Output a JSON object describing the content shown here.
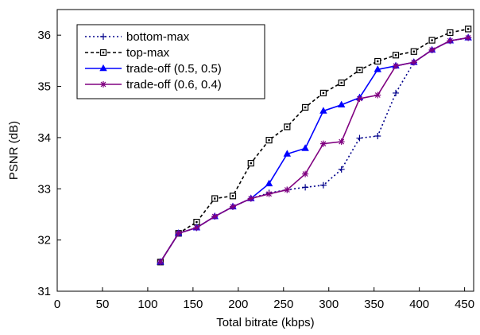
{
  "chart_data": {
    "type": "line",
    "title": "",
    "xlabel": "Total bitrate (kbps)",
    "ylabel": "PSNR (dB)",
    "xlim": [
      0,
      460
    ],
    "ylim": [
      31,
      36.5
    ],
    "xticks": [
      0,
      50,
      100,
      150,
      200,
      250,
      300,
      350,
      400,
      450
    ],
    "yticks": [
      31,
      32,
      33,
      34,
      35,
      36
    ],
    "legend_position": "top-left",
    "grid": false,
    "series": [
      {
        "name": "bottom-max",
        "color": "#00008b",
        "line_style": "dotted",
        "marker": "plus",
        "x": [
          114,
          134,
          154,
          174,
          194,
          214,
          234,
          254,
          274,
          294,
          314,
          334,
          354,
          374,
          394,
          414,
          434,
          454
        ],
        "y": [
          31.57,
          32.13,
          32.24,
          32.46,
          32.65,
          32.81,
          32.92,
          32.98,
          33.03,
          33.07,
          33.38,
          33.99,
          34.03,
          34.87,
          35.47,
          35.71,
          35.89,
          35.95
        ]
      },
      {
        "name": "top-max",
        "color": "#000000",
        "line_style": "dashed",
        "marker": "square",
        "x": [
          114,
          134,
          154,
          174,
          194,
          214,
          234,
          254,
          274,
          294,
          314,
          334,
          354,
          374,
          394,
          414,
          434,
          454
        ],
        "y": [
          31.57,
          32.13,
          32.35,
          32.81,
          32.86,
          33.5,
          33.95,
          34.21,
          34.59,
          34.87,
          35.07,
          35.32,
          35.49,
          35.61,
          35.68,
          35.9,
          36.05,
          36.12
        ]
      },
      {
        "name": "trade-off (0.5, 0.5)",
        "color": "#0000ff",
        "line_style": "solid",
        "marker": "triangle",
        "x": [
          114,
          134,
          154,
          174,
          194,
          214,
          234,
          254,
          274,
          294,
          314,
          334,
          354,
          374,
          394,
          414,
          434,
          454
        ],
        "y": [
          31.57,
          32.13,
          32.24,
          32.46,
          32.65,
          32.81,
          33.1,
          33.68,
          33.79,
          34.52,
          34.64,
          34.78,
          35.33,
          35.4,
          35.47,
          35.71,
          35.89,
          35.95
        ]
      },
      {
        "name": "trade-off (0.6, 0.4)",
        "color": "#800080",
        "line_style": "solid",
        "marker": "asterisk",
        "x": [
          114,
          134,
          154,
          174,
          194,
          214,
          234,
          254,
          274,
          294,
          314,
          334,
          354,
          374,
          394,
          414,
          434,
          454
        ],
        "y": [
          31.57,
          32.13,
          32.24,
          32.46,
          32.65,
          32.81,
          32.9,
          32.98,
          33.29,
          33.88,
          33.92,
          34.76,
          34.83,
          35.4,
          35.47,
          35.71,
          35.89,
          35.95
        ]
      }
    ]
  }
}
